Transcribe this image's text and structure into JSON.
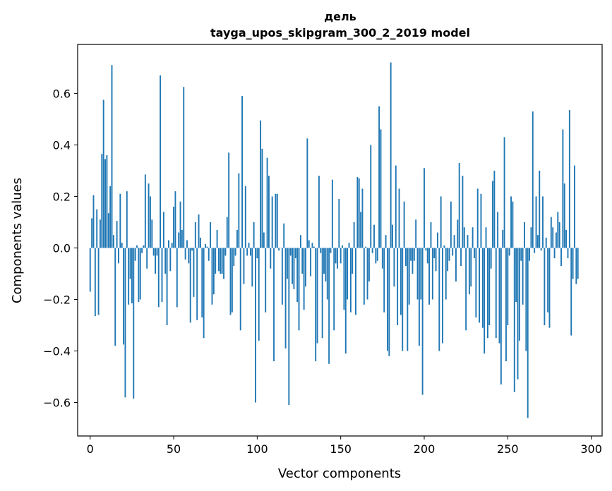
{
  "chart_data": {
    "type": "bar",
    "title": "дель",
    "subtitle": "tayga_upos_skipgram_300_2_2019 model",
    "xlabel": "Vector components",
    "ylabel": "Components values",
    "xlim": [
      -7.5,
      306.5
    ],
    "ylim": [
      -0.73,
      0.79
    ],
    "xticks": [
      0,
      50,
      100,
      150,
      200,
      250,
      300
    ],
    "yticks": [
      -0.6,
      -0.4,
      -0.2,
      0.0,
      0.2,
      0.4,
      0.6
    ],
    "ytick_labels": [
      "−0.6",
      "−0.4",
      "−0.2",
      "0.0",
      "0.2",
      "0.4",
      "0.6"
    ],
    "grid": false,
    "bar_color": "#1f77b4",
    "values": [
      -0.17,
      0.115,
      0.205,
      -0.265,
      0.15,
      -0.26,
      0.11,
      0.365,
      0.575,
      0.345,
      0.36,
      0.135,
      0.24,
      0.71,
      0.05,
      -0.38,
      0.105,
      -0.06,
      0.21,
      0.02,
      -0.375,
      -0.58,
      0.22,
      -0.22,
      -0.12,
      -0.215,
      -0.585,
      -0.05,
      0.01,
      -0.21,
      -0.2,
      -0.02,
      0.01,
      0.285,
      -0.08,
      0.25,
      0.2,
      0.11,
      -0.03,
      -0.1,
      -0.03,
      -0.23,
      0.67,
      -0.21,
      0.14,
      -0.1,
      -0.3,
      0.03,
      -0.09,
      0.02,
      0.16,
      0.22,
      -0.23,
      0.06,
      0.18,
      0.07,
      0.625,
      -0.045,
      0.03,
      -0.06,
      -0.29,
      -0.01,
      -0.19,
      0.1,
      -0.28,
      0.13,
      0.04,
      -0.27,
      -0.35,
      0.015,
      0.005,
      -0.05,
      0.1,
      -0.22,
      -0.18,
      -0.1,
      0.07,
      -0.09,
      -0.1,
      -0.1,
      -0.12,
      -0.03,
      0.12,
      0.37,
      -0.26,
      -0.25,
      -0.07,
      -0.03,
      0.07,
      0.29,
      -0.32,
      0.59,
      -0.14,
      0.24,
      -0.03,
      0.02,
      -0.03,
      -0.15,
      0.1,
      -0.6,
      -0.04,
      -0.36,
      0.495,
      0.385,
      0.06,
      -0.25,
      0.35,
      0.28,
      -0.08,
      0.2,
      -0.44,
      0.21,
      0.21,
      -0.01,
      0.0,
      -0.22,
      0.095,
      -0.39,
      -0.12,
      -0.61,
      -0.03,
      -0.14,
      -0.16,
      -0.04,
      -0.21,
      -0.32,
      0.05,
      -0.1,
      -0.24,
      -0.15,
      0.425,
      0.03,
      -0.11,
      0.02,
      0.005,
      -0.44,
      -0.37,
      0.28,
      -0.02,
      -0.35,
      -0.1,
      -0.13,
      -0.2,
      -0.45,
      -0.02,
      0.265,
      -0.32,
      -0.06,
      -0.08,
      0.19,
      -0.06,
      0.01,
      -0.24,
      -0.41,
      -0.2,
      0.02,
      -0.25,
      -0.1,
      0.1,
      -0.26,
      0.275,
      0.27,
      0.14,
      0.23,
      -0.22,
      0.005,
      -0.2,
      -0.13,
      0.4,
      -0.02,
      0.09,
      -0.06,
      -0.05,
      0.55,
      0.46,
      -0.08,
      -0.25,
      0.05,
      -0.4,
      -0.42,
      0.72,
      0.09,
      -0.15,
      0.32,
      -0.3,
      0.23,
      -0.26,
      -0.4,
      0.18,
      -0.07,
      -0.4,
      -0.22,
      -0.05,
      -0.1,
      -0.05,
      0.11,
      -0.2,
      -0.38,
      -0.2,
      -0.57,
      0.31,
      -0.01,
      -0.06,
      -0.22,
      0.1,
      -0.2,
      -0.04,
      -0.09,
      0.06,
      -0.4,
      0.2,
      -0.37,
      0.01,
      -0.2,
      -0.09,
      -0.05,
      0.18,
      -0.03,
      0.05,
      -0.13,
      0.11,
      0.33,
      -0.07,
      0.28,
      0.08,
      -0.32,
      0.05,
      -0.18,
      -0.15,
      0.08,
      -0.04,
      -0.27,
      0.23,
      -0.29,
      0.21,
      -0.31,
      -0.41,
      0.08,
      -0.35,
      -0.3,
      -0.08,
      0.26,
      0.3,
      -0.35,
      0.14,
      -0.37,
      -0.53,
      0.07,
      0.43,
      -0.44,
      -0.3,
      -0.03,
      0.2,
      0.18,
      -0.56,
      -0.21,
      -0.51,
      -0.36,
      -0.05,
      -0.22,
      0.1,
      -0.4,
      -0.66,
      -0.05,
      0.08,
      0.53,
      -0.02,
      0.2,
      0.05,
      0.3,
      -0.01,
      0.2,
      -0.3,
      0.04,
      -0.25,
      -0.31,
      0.12,
      0.08,
      -0.04,
      0.06,
      0.14,
      0.1,
      -0.07,
      0.46,
      0.25,
      0.07,
      -0.04,
      0.535,
      -0.34,
      -0.12,
      0.32,
      -0.14,
      -0.12
    ]
  }
}
